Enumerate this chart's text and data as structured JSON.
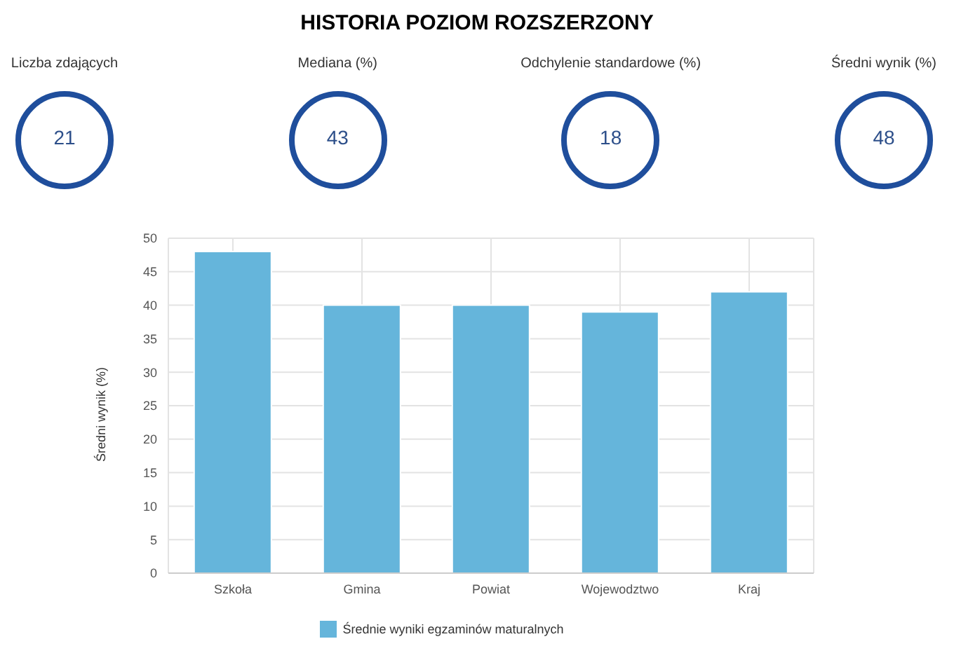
{
  "chart_data": [
    {
      "type": "other",
      "title": "HISTORIA POZIOM ROZSZERZONY"
    },
    {
      "type": "other",
      "title": "Liczba zdających",
      "annotations": [
        "21"
      ]
    },
    {
      "type": "other",
      "title": "Mediana (%)",
      "annotations": [
        "43"
      ]
    },
    {
      "type": "other",
      "title": "Odchylenie standardowe (%)",
      "annotations": [
        "18"
      ]
    },
    {
      "type": "other",
      "title": "Średni wynik (%)",
      "annotations": [
        "48"
      ]
    },
    {
      "type": "bar",
      "ylabel": "Średni wynik (%)",
      "categories": [
        "Szkoła",
        "Gmina",
        "Powiat",
        "Wojewodztwo",
        "Kraj"
      ],
      "series": [
        {
          "name": "Średnie wyniki egzaminów maturalnych",
          "color": "#65b5db",
          "values": [
            48,
            40,
            40,
            39,
            42
          ]
        }
      ],
      "ylim": [
        0,
        50
      ],
      "yticks": [
        0,
        5,
        10,
        15,
        20,
        25,
        30,
        35,
        40,
        45,
        50
      ],
      "grid": true,
      "legend": "bottom"
    }
  ]
}
